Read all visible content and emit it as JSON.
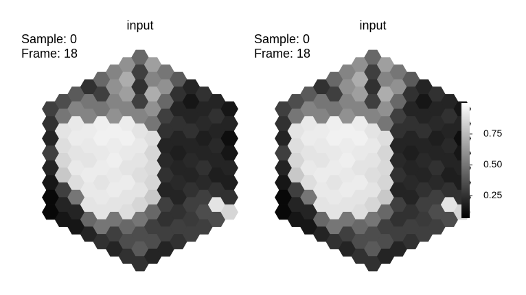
{
  "chart_data": [
    {
      "type": "hexmap",
      "title": "input",
      "annotations": [
        "Sample: 0",
        "Frame: 18"
      ],
      "colormap": "gray",
      "values": [
        [
          0.3,
          0.25,
          0.2,
          0.3,
          0.2,
          0.15,
          0.1,
          0.1
        ],
        [
          0.35,
          0.5,
          0.9,
          0.88,
          0.85,
          0.8,
          0.3,
          0.2,
          0.15
        ],
        [
          0.4,
          0.55,
          0.92,
          0.93,
          0.9,
          0.92,
          0.88,
          0.5,
          0.2,
          0.15
        ],
        [
          0.25,
          0.5,
          0.55,
          0.93,
          0.92,
          0.9,
          0.93,
          0.92,
          0.9,
          0.45,
          0.2
        ],
        [
          0.45,
          0.3,
          0.5,
          0.94,
          0.95,
          0.92,
          0.93,
          0.9,
          0.92,
          0.9,
          0.5,
          0.25
        ],
        [
          0.55,
          0.6,
          0.55,
          0.6,
          0.95,
          0.93,
          0.94,
          0.92,
          0.93,
          0.9,
          0.5,
          0.3,
          0.2
        ],
        [
          0.6,
          0.7,
          0.65,
          0.55,
          0.93,
          0.95,
          0.92,
          0.9,
          0.93,
          0.9,
          0.88,
          0.45,
          0.35,
          0.25
        ],
        [
          0.45,
          0.3,
          0.25,
          0.3,
          0.55,
          0.9,
          0.92,
          0.9,
          0.88,
          0.9,
          0.85,
          0.5,
          0.35,
          0.4,
          0.25
        ],
        [
          0.65,
          0.55,
          0.7,
          0.6,
          0.5,
          0.88,
          0.85,
          0.86,
          0.85,
          0.8,
          0.45,
          0.3,
          0.35,
          0.2
        ],
        [
          0.5,
          0.6,
          0.45,
          0.3,
          0.25,
          0.2,
          0.22,
          0.25,
          0.2,
          0.3,
          0.25,
          0.3,
          0.2
        ],
        [
          0.4,
          0.25,
          0.2,
          0.25,
          0.2,
          0.18,
          0.2,
          0.22,
          0.2,
          0.25,
          0.3,
          0.25
        ],
        [
          0.2,
          0.15,
          0.2,
          0.25,
          0.2,
          0.22,
          0.2,
          0.25,
          0.3,
          0.28,
          0.3
        ],
        [
          0.25,
          0.2,
          0.22,
          0.18,
          0.2,
          0.25,
          0.22,
          0.3,
          0.35,
          0.3
        ],
        [
          0.2,
          0.25,
          0.2,
          0.22,
          0.2,
          0.18,
          0.25,
          0.9,
          0.35
        ],
        [
          0.15,
          0.2,
          0.12,
          0.15,
          0.2,
          0.18,
          0.25,
          0.85
        ]
      ]
    },
    {
      "type": "hexmap",
      "title": "input",
      "annotations": [
        "Sample: 0",
        "Frame: 18"
      ],
      "colormap": "gray",
      "values": [
        [
          0.3,
          0.25,
          0.2,
          0.3,
          0.2,
          0.15,
          0.1,
          0.1
        ],
        [
          0.35,
          0.5,
          0.9,
          0.88,
          0.85,
          0.8,
          0.3,
          0.2,
          0.15
        ],
        [
          0.4,
          0.55,
          0.92,
          0.93,
          0.9,
          0.92,
          0.88,
          0.5,
          0.2,
          0.15
        ],
        [
          0.25,
          0.5,
          0.55,
          0.93,
          0.92,
          0.9,
          0.93,
          0.92,
          0.9,
          0.45,
          0.2
        ],
        [
          0.45,
          0.3,
          0.5,
          0.94,
          0.95,
          0.92,
          0.93,
          0.9,
          0.92,
          0.9,
          0.5,
          0.25
        ],
        [
          0.55,
          0.6,
          0.55,
          0.6,
          0.95,
          0.93,
          0.94,
          0.92,
          0.93,
          0.9,
          0.5,
          0.3,
          0.2
        ],
        [
          0.6,
          0.7,
          0.65,
          0.55,
          0.93,
          0.95,
          0.92,
          0.9,
          0.93,
          0.9,
          0.88,
          0.45,
          0.35,
          0.25
        ],
        [
          0.45,
          0.3,
          0.25,
          0.3,
          0.55,
          0.9,
          0.92,
          0.9,
          0.88,
          0.9,
          0.85,
          0.5,
          0.35,
          0.4,
          0.25
        ],
        [
          0.65,
          0.55,
          0.7,
          0.6,
          0.5,
          0.88,
          0.85,
          0.86,
          0.85,
          0.8,
          0.45,
          0.3,
          0.35,
          0.2
        ],
        [
          0.5,
          0.6,
          0.45,
          0.3,
          0.25,
          0.2,
          0.22,
          0.25,
          0.2,
          0.3,
          0.25,
          0.3,
          0.2
        ],
        [
          0.4,
          0.25,
          0.2,
          0.25,
          0.2,
          0.18,
          0.2,
          0.22,
          0.2,
          0.25,
          0.3,
          0.25
        ],
        [
          0.2,
          0.15,
          0.2,
          0.25,
          0.2,
          0.22,
          0.2,
          0.25,
          0.3,
          0.28,
          0.3
        ],
        [
          0.25,
          0.2,
          0.22,
          0.18,
          0.2,
          0.25,
          0.22,
          0.3,
          0.35,
          0.3
        ],
        [
          0.2,
          0.25,
          0.2,
          0.22,
          0.2,
          0.18,
          0.25,
          0.9,
          0.35
        ],
        [
          0.15,
          0.2,
          0.12,
          0.15,
          0.2,
          0.18,
          0.25,
          0.85
        ]
      ],
      "colorbar": {
        "ylim": [
          0.07,
          1.0
        ],
        "yticks": [
          0.25,
          {
            "value": 0.5,
            "label": "0.50"
          },
          0.75
        ]
      }
    }
  ]
}
